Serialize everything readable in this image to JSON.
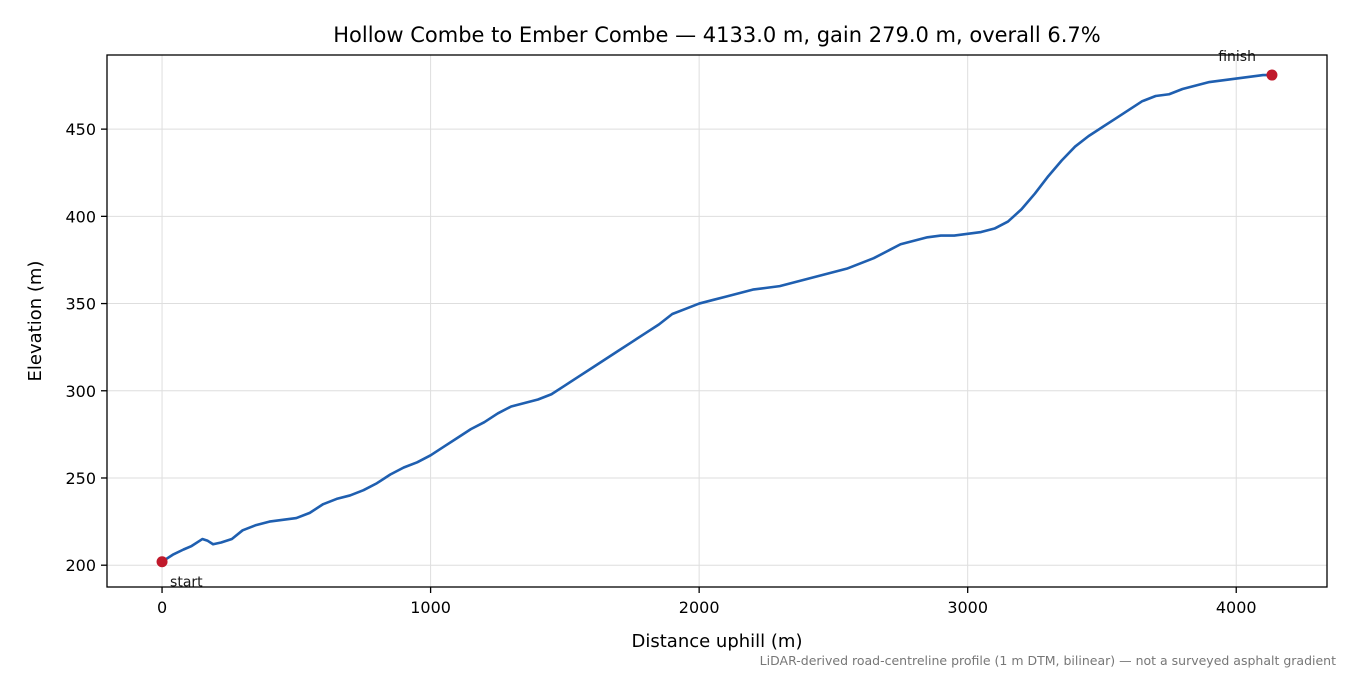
{
  "chart_data": {
    "type": "line",
    "title": "Hollow Combe to Ember Combe — 4133.0 m, gain 279.0 m, overall 6.7%",
    "xlabel": "Distance uphill (m)",
    "ylabel": "Elevation (m)",
    "xlim": [
      -205,
      4338
    ],
    "ylim": [
      187.5,
      492.5
    ],
    "xticks": [
      0,
      1000,
      2000,
      3000,
      4000
    ],
    "yticks": [
      200,
      250,
      300,
      350,
      400,
      450
    ],
    "grid": true,
    "line_color": "#1f5fb0",
    "marker_color": "#c0192b",
    "series": [
      {
        "x": [
          0,
          40,
          80,
          110,
          140,
          150,
          170,
          190,
          220,
          260,
          300,
          350,
          400,
          450,
          500,
          550,
          600,
          650,
          700,
          750,
          800,
          850,
          900,
          950,
          1000,
          1050,
          1100,
          1150,
          1200,
          1250,
          1300,
          1350,
          1400,
          1450,
          1500,
          1550,
          1600,
          1650,
          1700,
          1750,
          1800,
          1850,
          1900,
          1950,
          2000,
          2050,
          2100,
          2150,
          2200,
          2250,
          2300,
          2350,
          2400,
          2450,
          2500,
          2550,
          2600,
          2650,
          2700,
          2750,
          2800,
          2850,
          2900,
          2950,
          3000,
          3050,
          3100,
          3150,
          3200,
          3250,
          3300,
          3350,
          3400,
          3450,
          3500,
          3550,
          3600,
          3650,
          3700,
          3750,
          3800,
          3850,
          3900,
          3950,
          4000,
          4050,
          4100,
          4133
        ],
        "y": [
          202,
          206,
          209,
          211,
          214,
          215,
          214,
          212,
          213,
          215,
          220,
          223,
          225,
          226,
          227,
          230,
          235,
          238,
          240,
          243,
          247,
          252,
          256,
          259,
          263,
          268,
          273,
          278,
          282,
          287,
          291,
          293,
          295,
          298,
          303,
          308,
          313,
          318,
          323,
          328,
          333,
          338,
          344,
          347,
          350,
          352,
          354,
          356,
          358,
          359,
          360,
          362,
          364,
          366,
          368,
          370,
          373,
          376,
          380,
          384,
          386,
          388,
          389,
          389,
          390,
          391,
          393,
          397,
          404,
          413,
          423,
          432,
          440,
          446,
          451,
          456,
          461,
          466,
          469,
          470,
          473,
          475,
          477,
          478,
          479,
          480,
          481,
          481
        ]
      }
    ],
    "annotations": [
      {
        "text": "start",
        "x": 0,
        "y": 202
      },
      {
        "text": "finish",
        "x": 4133,
        "y": 481
      }
    ],
    "footnote": "LiDAR-derived road-centreline profile (1 m DTM, bilinear) — not a surveyed asphalt gradient"
  }
}
